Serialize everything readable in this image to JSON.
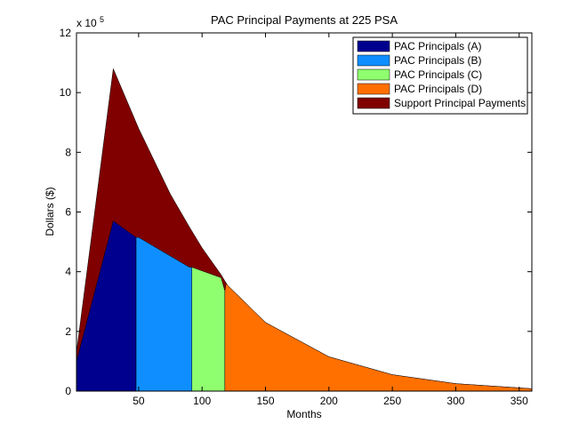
{
  "chart_data": {
    "type": "area",
    "title": "PAC Principal Payments at 225 PSA",
    "xlabel": "Months",
    "ylabel": "Dollars ($)",
    "y_multiplier_label": "x 10",
    "y_multiplier_exponent": "5",
    "xlim": [
      1,
      360
    ],
    "ylim": [
      0,
      12
    ],
    "xticks": [
      50,
      100,
      150,
      200,
      250,
      300,
      350
    ],
    "yticks": [
      0,
      2,
      4,
      6,
      8,
      10,
      12
    ],
    "legend_position": "top-right",
    "total_curve": {
      "x": [
        1,
        30,
        50,
        75,
        90,
        100,
        115,
        120,
        150,
        200,
        250,
        300,
        360
      ],
      "y": [
        1.3,
        10.8,
        8.8,
        6.6,
        5.5,
        4.8,
        3.9,
        3.55,
        2.3,
        1.15,
        0.55,
        0.25,
        0.08
      ]
    },
    "pac_curve": {
      "x": [
        1,
        30,
        48,
        50,
        90,
        92,
        115,
        118
      ],
      "y": [
        1.0,
        5.7,
        5.15,
        5.15,
        4.15,
        4.15,
        3.8,
        3.35
      ]
    },
    "series": [
      {
        "name": "PAC Principals (A)",
        "color": "#00008f",
        "x_range": [
          1,
          48
        ]
      },
      {
        "name": "PAC Principals (B)",
        "color": "#0f8fff",
        "x_range": [
          48,
          92
        ]
      },
      {
        "name": "PAC Principals (C)",
        "color": "#8fff6f",
        "x_range": [
          92,
          118
        ]
      },
      {
        "name": "PAC Principals (D)",
        "color": "#ff7000",
        "x_range": [
          118,
          360
        ]
      },
      {
        "name": "Support Principal Payments",
        "color": "#800000",
        "x_range": [
          1,
          360
        ]
      }
    ],
    "grid": false
  }
}
